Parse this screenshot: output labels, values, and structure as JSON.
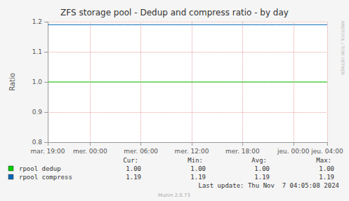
{
  "chart_data": {
    "type": "line",
    "title": "ZFS storage pool - Dedup and compress ratio - by day",
    "y_label": "Ratio",
    "categories": [
      "mar. 19:00",
      null,
      null,
      null,
      null,
      "mer. 00:00",
      null,
      null,
      null,
      null,
      null,
      "mer. 06:00",
      null,
      null,
      null,
      null,
      null,
      "mer. 12:00",
      null,
      null,
      null,
      null,
      null,
      "mer. 18:00",
      null,
      null,
      null,
      null,
      null,
      "jeu. 00:00",
      null,
      null,
      null,
      "jeu. 04:00"
    ],
    "ylim": [
      0.8,
      1.2
    ],
    "yticks": [
      0.8,
      0.9,
      {
        "value": 1,
        "label": "1.0"
      },
      1.1,
      1.2
    ],
    "grid": true,
    "series": [
      {
        "name": "rpool dedup",
        "color": "#00cc00",
        "values": [
          1,
          1,
          1,
          1,
          1,
          1,
          1,
          1,
          1,
          1,
          1,
          1,
          1,
          1,
          1,
          1,
          1,
          1,
          1,
          1,
          1,
          1,
          1,
          1,
          1,
          1,
          1,
          1,
          1,
          1,
          1,
          1,
          1,
          1
        ],
        "stats": [
          "1.00",
          "1.00",
          "1.00",
          "1.00"
        ]
      },
      {
        "name": "rpool compress",
        "color": "#0066b3",
        "values": [
          1.19,
          1.19,
          1.19,
          1.19,
          1.19,
          1.19,
          1.19,
          1.19,
          1.19,
          1.19,
          1.19,
          1.19,
          1.19,
          1.19,
          1.19,
          1.19,
          1.19,
          1.19,
          1.19,
          1.19,
          1.19,
          1.19,
          1.19,
          1.19,
          1.19,
          1.19,
          1.19,
          1.19,
          1.19,
          1.19,
          1.19,
          1.19,
          1.19,
          1.19
        ],
        "stats": [
          "1.19",
          "1.19",
          "1.19",
          "1.19"
        ]
      }
    ],
    "stats_headers": [
      "Cur:",
      "Min:",
      "Avg:",
      "Max:"
    ],
    "last_update": "Last update: Thu Nov  7 04:05:08 2024",
    "footer": "Munin 2.0.73",
    "side_text": "RRDTOOL / TOBI OETIKER"
  }
}
